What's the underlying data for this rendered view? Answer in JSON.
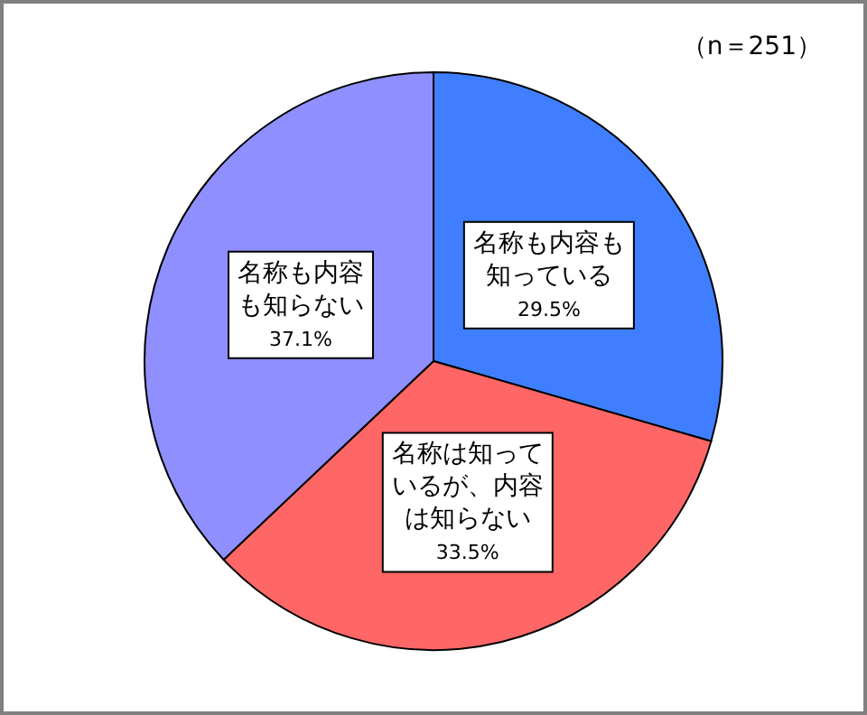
{
  "chart_data": {
    "type": "pie",
    "categories": [
      "名称も内容も知っている",
      "名称は知っているが、内容は知らない",
      "名称も内容も知らない"
    ],
    "values": [
      29.5,
      33.5,
      37.1
    ],
    "colors": [
      "#3f7fff",
      "#ff6666",
      "#8f8fff"
    ],
    "value_labels": [
      "29.5%",
      "33.5%",
      "37.1%"
    ],
    "annotations": [
      "（n＝251）"
    ]
  }
}
